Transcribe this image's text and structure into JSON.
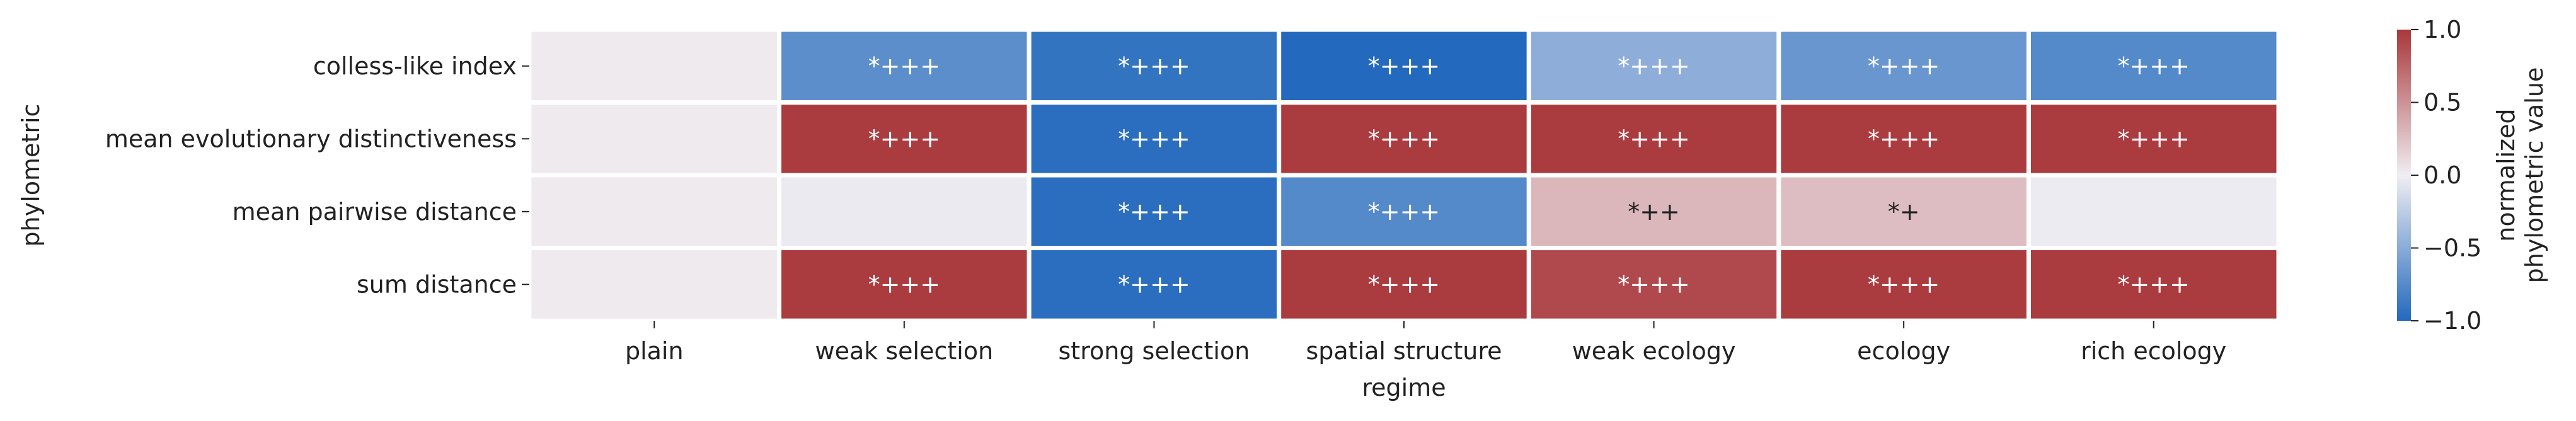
{
  "chart_data": {
    "type": "heatmap",
    "xlabel": "regime",
    "ylabel": "phylometric",
    "x_categories": [
      "plain",
      "weak selection",
      "strong selection",
      "spatial structure",
      "weak ecology",
      "ecology",
      "rich ecology"
    ],
    "y_categories": [
      "colless-like index",
      "mean evolutionary distinctiveness",
      "mean pairwise distance",
      "sum distance"
    ],
    "values": [
      [
        0.02,
        -0.72,
        -0.92,
        -1.0,
        -0.48,
        -0.66,
        -0.76
      ],
      [
        0.02,
        0.98,
        -0.96,
        0.98,
        0.98,
        0.98,
        0.98
      ],
      [
        0.02,
        -0.03,
        -0.96,
        -0.76,
        0.3,
        0.27,
        -0.02
      ],
      [
        0.02,
        0.98,
        -0.96,
        0.98,
        0.9,
        0.98,
        0.98
      ]
    ],
    "annotations": [
      [
        "",
        "*+++",
        "*+++",
        "*+++",
        "*+++",
        "*+++",
        "*+++"
      ],
      [
        "",
        "*+++",
        "*+++",
        "*+++",
        "*+++",
        "*+++",
        "*+++"
      ],
      [
        "",
        "",
        "*+++",
        "*+++",
        "*++",
        "*+",
        ""
      ],
      [
        "",
        "*+++",
        "*+++",
        "*+++",
        "*+++",
        "*+++",
        "*+++"
      ]
    ],
    "colorbar": {
      "label_lines": [
        "normalized",
        "phylometric value"
      ],
      "range": [
        -1.0,
        1.0
      ],
      "ticks": [
        1.0,
        0.5,
        0.0,
        -0.5,
        -1.0
      ],
      "tick_labels": [
        "1.0",
        "0.5",
        "0.0",
        "−0.5",
        "−1.0"
      ],
      "colormap": "vlag",
      "color_stops": [
        "#2369bd",
        "#f0eef2",
        "#a9373b"
      ]
    }
  }
}
